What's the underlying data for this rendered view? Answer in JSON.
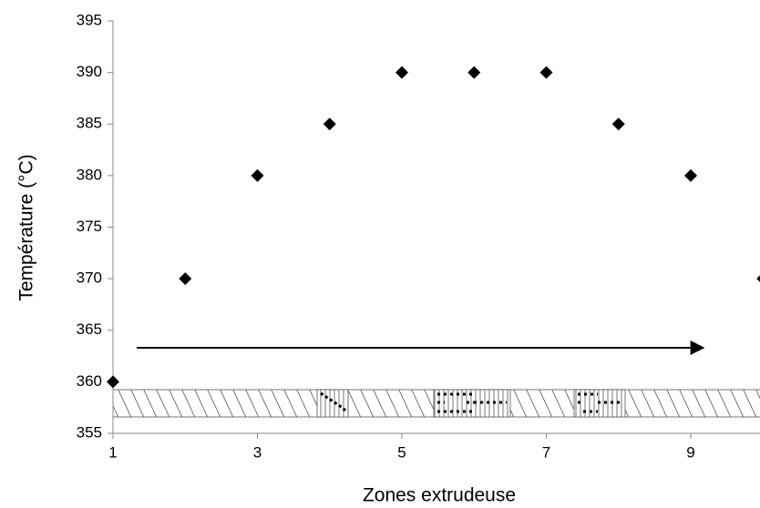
{
  "chart_data": {
    "type": "scatter",
    "x_label": "Zones extrudeuse",
    "y_label": "Température (°C)",
    "x": [
      1,
      2,
      3,
      4,
      5,
      6,
      7,
      8,
      9,
      10
    ],
    "values": [
      360,
      370,
      380,
      385,
      390,
      390,
      390,
      385,
      380,
      370
    ],
    "color": "#000000",
    "xlim": [
      1,
      10
    ],
    "xticks": [
      1,
      3,
      5,
      7,
      9
    ],
    "ylim": [
      355,
      395
    ],
    "yticks": [
      355,
      360,
      365,
      370,
      375,
      380,
      385,
      390,
      395
    ],
    "grid": false
  }
}
